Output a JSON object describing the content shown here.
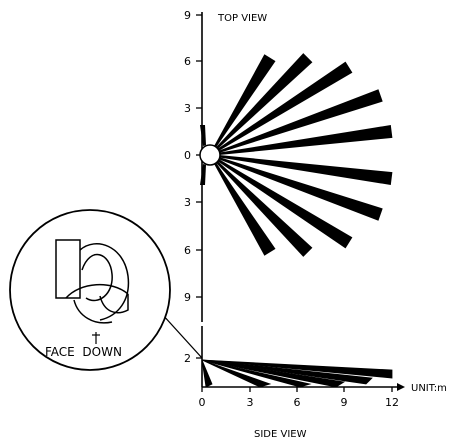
{
  "top_view": {
    "title": "TOP VIEW",
    "tick_labels": [
      "9",
      "6",
      "3",
      "0",
      "3",
      "6",
      "9"
    ],
    "beams": [
      {
        "x": 4.3,
        "y": 6.2
      },
      {
        "x": 6.7,
        "y": 6.2
      },
      {
        "x": 9.3,
        "y": 5.6
      },
      {
        "x": 11.3,
        "y": 3.8
      },
      {
        "x": 12.0,
        "y": 1.5
      },
      {
        "x": 12.0,
        "y": -1.5
      },
      {
        "x": 11.3,
        "y": -3.8
      },
      {
        "x": 9.3,
        "y": -5.6
      },
      {
        "x": 6.7,
        "y": -6.2
      },
      {
        "x": 4.3,
        "y": -6.2
      }
    ]
  },
  "side_view": {
    "title": "SIDE VIEW",
    "y_tick_label": "2",
    "x_tick_labels": [
      "0",
      "3",
      "6",
      "9",
      "12"
    ],
    "unit_label": "UNIT:m"
  },
  "inset": {
    "caption": "FACE  DOWN"
  }
}
